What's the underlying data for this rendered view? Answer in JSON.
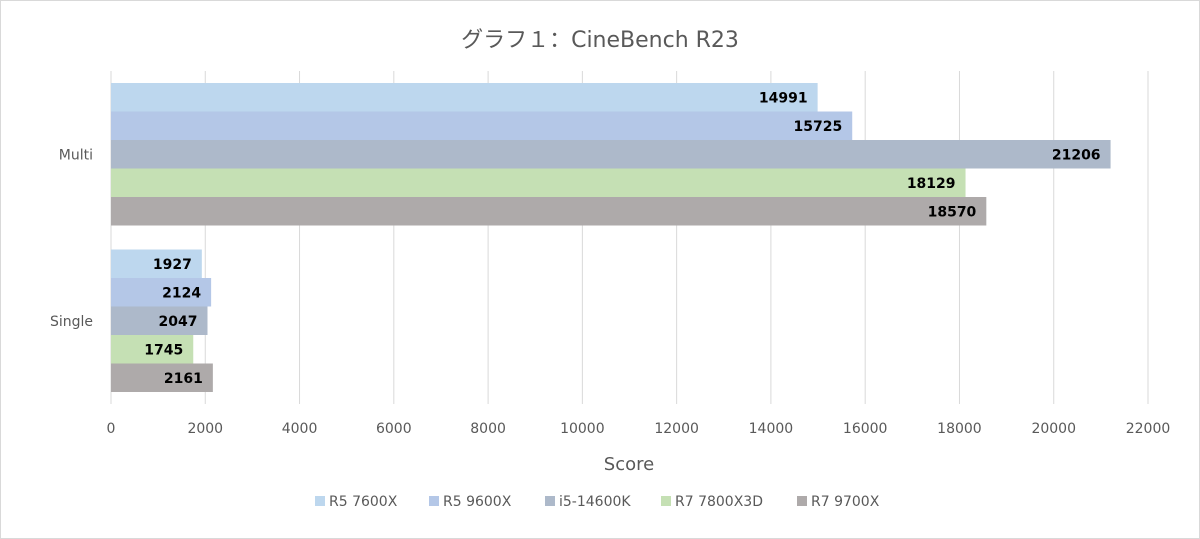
{
  "chart_data": {
    "type": "bar",
    "orientation": "horizontal",
    "title": "グラフ１：CineBench R23",
    "xlabel": "Score",
    "ylabel": "",
    "categories": [
      "Multi",
      "Single"
    ],
    "xlim": [
      0,
      22000
    ],
    "xticks": [
      0,
      2000,
      4000,
      6000,
      8000,
      10000,
      12000,
      14000,
      16000,
      18000,
      20000,
      22000
    ],
    "grid": true,
    "legend_position": "bottom",
    "data_labels": true,
    "series": [
      {
        "name": "R5 7600X",
        "color": "#bdd7ee",
        "values": [
          14991,
          1927
        ]
      },
      {
        "name": "R5 9600X",
        "color": "#b4c7e7",
        "values": [
          15725,
          2124
        ]
      },
      {
        "name": "i5-14600K",
        "color": "#adb9ca",
        "values": [
          21206,
          2047
        ]
      },
      {
        "name": "R7 7800X3D",
        "color": "#c5e0b4",
        "values": [
          18129,
          1745
        ]
      },
      {
        "name": "R7 9700X",
        "color": "#aeaaaa",
        "values": [
          18570,
          2161
        ]
      }
    ]
  }
}
